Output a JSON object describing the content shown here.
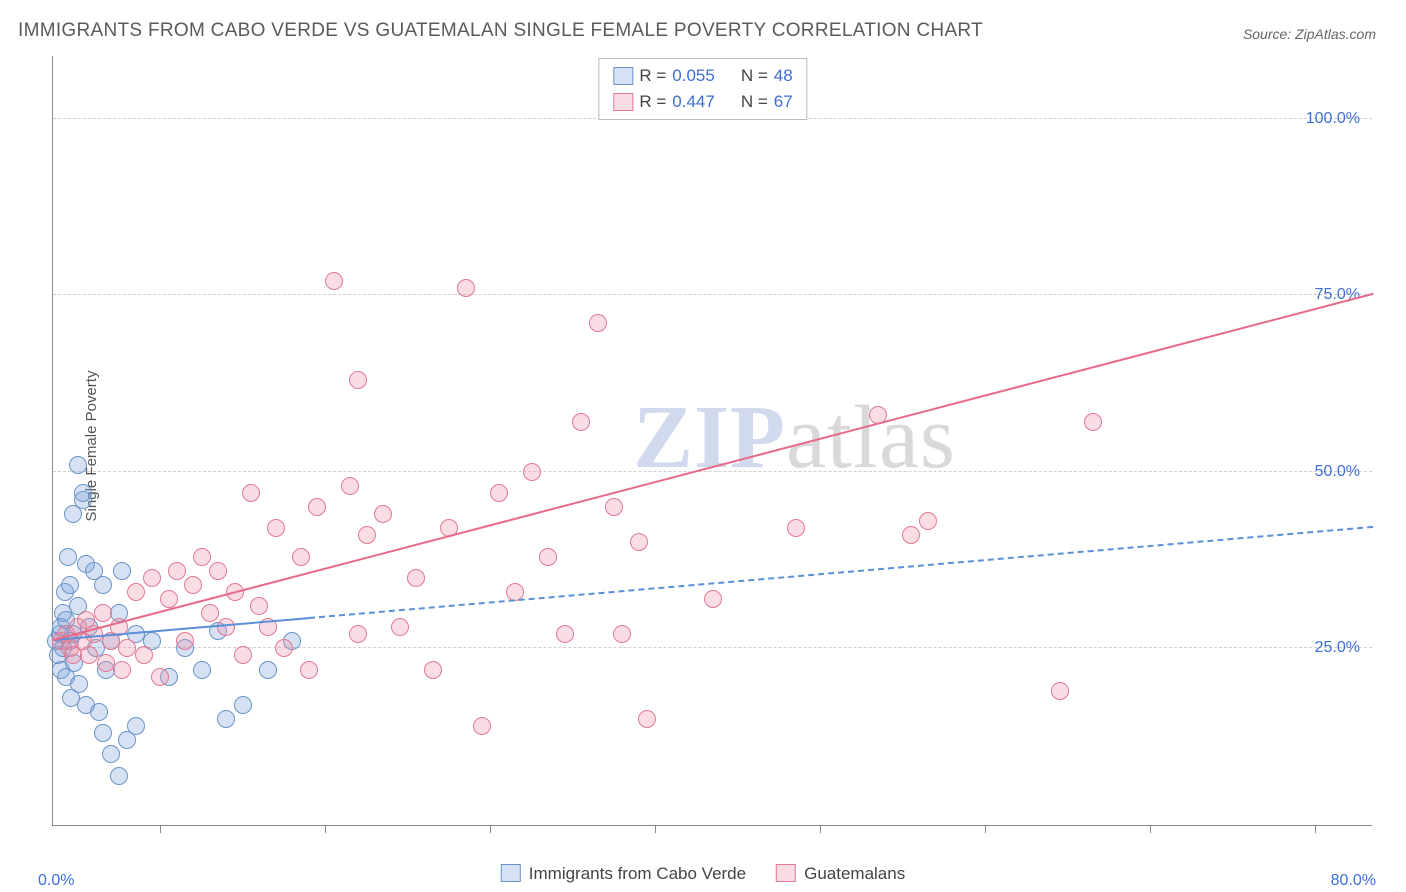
{
  "title": "IMMIGRANTS FROM CABO VERDE VS GUATEMALAN SINGLE FEMALE POVERTY CORRELATION CHART",
  "source": "Source: ZipAtlas.com",
  "ylabel": "Single Female Poverty",
  "watermark_zip": "ZIP",
  "watermark_atlas": "atlas",
  "chart": {
    "type": "scatter",
    "background_color": "#ffffff",
    "grid_color": "#d0d0d0",
    "axis_color": "#888888",
    "tick_label_color": "#3d6fd6",
    "xlim": [
      0,
      80
    ],
    "ylim": [
      0,
      109
    ],
    "xlim_labels": {
      "min": "0.0%",
      "max": "80.0%"
    },
    "x_ticks": [
      6.5,
      16.5,
      26.5,
      36.5,
      46.5,
      56.5,
      66.5,
      76.5
    ],
    "y_gridlines": [
      {
        "v": 25,
        "label": "25.0%"
      },
      {
        "v": 50,
        "label": "50.0%"
      },
      {
        "v": 75,
        "label": "75.0%"
      },
      {
        "v": 100,
        "label": "100.0%"
      }
    ],
    "marker_radius": 9,
    "marker_stroke_width": 1.5,
    "marker_fill_opacity": 0.25
  },
  "series": {
    "a": {
      "label": "Immigrants from Cabo Verde",
      "R_label": "R =",
      "N_label": "N =",
      "R": "0.055",
      "N": "48",
      "color": "#5b8fd6",
      "fill": "rgba(120,160,220,0.30)",
      "stroke": "#6a95c9",
      "trend": {
        "x1": 0,
        "y1": 26,
        "x2": 80,
        "y2": 42,
        "solid_until_x": 15.5,
        "width": 2,
        "dash": "7,6"
      },
      "points": [
        [
          0.2,
          26
        ],
        [
          0.3,
          24
        ],
        [
          0.4,
          27
        ],
        [
          0.5,
          28
        ],
        [
          0.5,
          22
        ],
        [
          0.6,
          30
        ],
        [
          0.6,
          25
        ],
        [
          0.7,
          33
        ],
        [
          0.8,
          29
        ],
        [
          0.8,
          21
        ],
        [
          0.9,
          38
        ],
        [
          1.0,
          26
        ],
        [
          1.0,
          34
        ],
        [
          1.1,
          18
        ],
        [
          1.2,
          44
        ],
        [
          1.2,
          27
        ],
        [
          1.3,
          23
        ],
        [
          1.5,
          51
        ],
        [
          1.5,
          31
        ],
        [
          1.6,
          20
        ],
        [
          1.8,
          46
        ],
        [
          1.8,
          47
        ],
        [
          2.0,
          37
        ],
        [
          2.0,
          17
        ],
        [
          2.2,
          28
        ],
        [
          2.5,
          36
        ],
        [
          2.6,
          25
        ],
        [
          2.8,
          16
        ],
        [
          3.0,
          34
        ],
        [
          3.0,
          13
        ],
        [
          3.2,
          22
        ],
        [
          3.5,
          26
        ],
        [
          3.5,
          10
        ],
        [
          4.0,
          30
        ],
        [
          4.0,
          7
        ],
        [
          4.2,
          36
        ],
        [
          4.5,
          12
        ],
        [
          5.0,
          27
        ],
        [
          5.0,
          14
        ],
        [
          6.0,
          26
        ],
        [
          7.0,
          21
        ],
        [
          8.0,
          25
        ],
        [
          9.0,
          22
        ],
        [
          10.0,
          27.5
        ],
        [
          10.5,
          15
        ],
        [
          11.5,
          17
        ],
        [
          13.0,
          22
        ],
        [
          14.5,
          26
        ]
      ]
    },
    "b": {
      "label": "Guatemalans",
      "R_label": "R =",
      "N_label": "N =",
      "R": "0.447",
      "N": "67",
      "color": "#e86a8a",
      "fill": "rgba(240,140,165,0.30)",
      "stroke": "#e07a95",
      "trend": {
        "x1": 0,
        "y1": 26,
        "x2": 80,
        "y2": 75,
        "solid_until_x": 80,
        "width": 2.5
      },
      "points": [
        [
          0.5,
          26
        ],
        [
          0.8,
          27
        ],
        [
          1.0,
          25
        ],
        [
          1.2,
          24
        ],
        [
          1.5,
          28
        ],
        [
          1.8,
          26
        ],
        [
          2.0,
          29
        ],
        [
          2.2,
          24
        ],
        [
          2.5,
          27
        ],
        [
          3.0,
          30
        ],
        [
          3.2,
          23
        ],
        [
          3.5,
          26
        ],
        [
          4.0,
          28
        ],
        [
          4.2,
          22
        ],
        [
          4.5,
          25
        ],
        [
          5.0,
          33
        ],
        [
          5.5,
          24
        ],
        [
          6.0,
          35
        ],
        [
          6.5,
          21
        ],
        [
          7.0,
          32
        ],
        [
          7.5,
          36
        ],
        [
          8.0,
          26
        ],
        [
          8.5,
          34
        ],
        [
          9.0,
          38
        ],
        [
          9.5,
          30
        ],
        [
          10.0,
          36
        ],
        [
          10.5,
          28
        ],
        [
          11.0,
          33
        ],
        [
          11.5,
          24
        ],
        [
          12.0,
          47
        ],
        [
          12.5,
          31
        ],
        [
          13.0,
          28
        ],
        [
          13.5,
          42
        ],
        [
          14.0,
          25
        ],
        [
          15.0,
          38
        ],
        [
          15.5,
          22
        ],
        [
          16.0,
          45
        ],
        [
          17.0,
          77
        ],
        [
          18.0,
          48
        ],
        [
          18.5,
          63
        ],
        [
          18.5,
          27
        ],
        [
          19.0,
          41
        ],
        [
          20.0,
          44
        ],
        [
          21.0,
          28
        ],
        [
          22.0,
          35
        ],
        [
          23.0,
          22
        ],
        [
          24.0,
          42
        ],
        [
          25.0,
          76
        ],
        [
          26.0,
          14
        ],
        [
          27.0,
          47
        ],
        [
          28.0,
          33
        ],
        [
          29.0,
          50
        ],
        [
          30.0,
          38
        ],
        [
          31.0,
          27
        ],
        [
          32.0,
          57
        ],
        [
          33.0,
          71
        ],
        [
          34.0,
          45
        ],
        [
          34.5,
          27
        ],
        [
          35.5,
          40
        ],
        [
          36.0,
          15
        ],
        [
          45.0,
          42
        ],
        [
          50.0,
          58
        ],
        [
          52.0,
          41
        ],
        [
          53.0,
          43
        ],
        [
          61.0,
          19
        ],
        [
          63.0,
          57
        ],
        [
          40.0,
          32
        ]
      ]
    }
  }
}
